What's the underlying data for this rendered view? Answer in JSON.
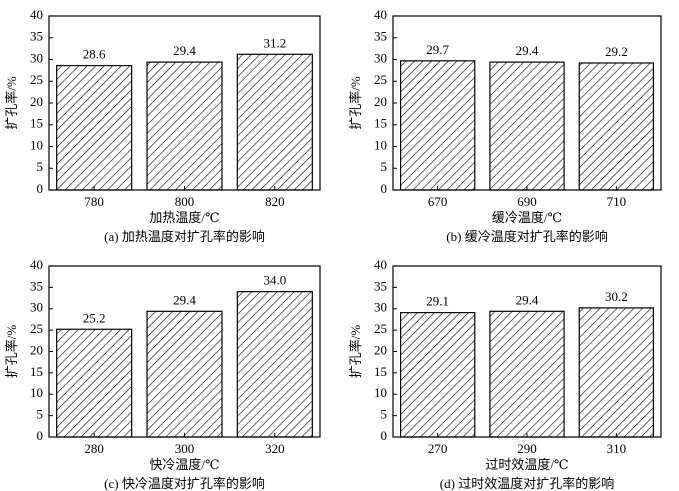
{
  "chart_data": [
    {
      "type": "bar",
      "title": "(a) 加热温度对扩孔率的影响",
      "xlabel": "加热温度/℃",
      "ylabel": "扩孔率/%",
      "categories": [
        "780",
        "800",
        "820"
      ],
      "values": [
        28.6,
        29.4,
        31.2
      ],
      "color": "#000000",
      "ylim": [
        0,
        40
      ],
      "yticks": [
        0,
        5,
        10,
        15,
        20,
        25,
        30,
        35,
        40
      ]
    },
    {
      "type": "bar",
      "title": "(b) 缓冷温度对扩孔率的影响",
      "xlabel": "缓冷温度/℃",
      "ylabel": "扩孔率/%",
      "categories": [
        "670",
        "690",
        "710"
      ],
      "values": [
        29.7,
        29.4,
        29.2
      ],
      "color": "#000000",
      "ylim": [
        0,
        40
      ],
      "yticks": [
        0,
        5,
        10,
        15,
        20,
        25,
        30,
        35,
        40
      ]
    },
    {
      "type": "bar",
      "title": "(c) 快冷温度对扩孔率的影响",
      "xlabel": "快冷温度/℃",
      "ylabel": "扩孔率/%",
      "categories": [
        "280",
        "300",
        "320"
      ],
      "values": [
        25.2,
        29.4,
        34.0
      ],
      "value_labels": [
        "25.2",
        "29.4",
        "34.0"
      ],
      "color": "#000000",
      "ylim": [
        0,
        40
      ],
      "yticks": [
        0,
        5,
        10,
        15,
        20,
        25,
        30,
        35,
        40
      ]
    },
    {
      "type": "bar",
      "title": "(d) 过时效温度对扩孔率的影响",
      "xlabel": "过时效温度/℃",
      "ylabel": "扩孔率/%",
      "categories": [
        "270",
        "290",
        "310"
      ],
      "values": [
        29.1,
        29.4,
        30.2
      ],
      "color": "#000000",
      "ylim": [
        0,
        40
      ],
      "yticks": [
        0,
        5,
        10,
        15,
        20,
        25,
        30,
        35,
        40
      ]
    }
  ]
}
